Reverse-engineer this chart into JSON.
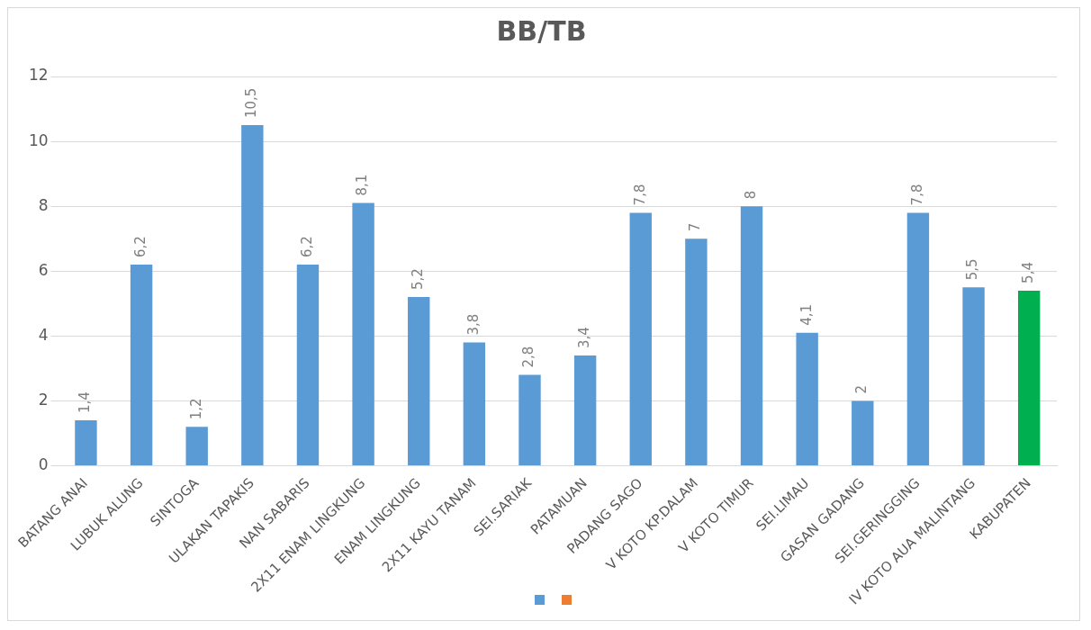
{
  "chart_data": {
    "type": "bar",
    "title": "BB/TB",
    "categories": [
      "BATANG ANAI",
      "LUBUK ALUNG",
      "SINTOGA",
      "ULAKAN TAPAKIS",
      "NAN SABARIS",
      "2X11 ENAM LINGKUNG",
      "ENAM LINGKUNG",
      "2X11 KAYU TANAM",
      "SEI.SARIAK",
      "PATAMUAN",
      "PADANG SAGO",
      "V KOTO KP.DALAM",
      "V KOTO TIMUR",
      "SEI.LIMAU",
      "GASAN GADANG",
      "SEI.GERINGGING",
      "IV KOTO AUA MALINTANG",
      "KABUPATEN"
    ],
    "series": [
      {
        "color": "#5b9bd5",
        "colors": [
          "#5b9bd5",
          "#5b9bd5",
          "#5b9bd5",
          "#5b9bd5",
          "#5b9bd5",
          "#5b9bd5",
          "#5b9bd5",
          "#5b9bd5",
          "#5b9bd5",
          "#5b9bd5",
          "#5b9bd5",
          "#5b9bd5",
          "#5b9bd5",
          "#5b9bd5",
          "#5b9bd5",
          "#5b9bd5",
          "#5b9bd5",
          "#00b050"
        ],
        "values": [
          1.4,
          6.2,
          1.2,
          10.5,
          6.2,
          8.1,
          5.2,
          3.8,
          2.8,
          3.4,
          7.8,
          7,
          8,
          4.1,
          2,
          7.8,
          5.5,
          5.4
        ],
        "value_labels": [
          "1,4",
          "6,2",
          "1,2",
          "10,5",
          "6,2",
          "8,1",
          "5,2",
          "3,8",
          "2,8",
          "3,4",
          "7,8",
          "7",
          "8",
          "4,1",
          "2",
          "7,8",
          "5,5",
          "5,4"
        ]
      }
    ],
    "ylim": [
      0,
      12
    ],
    "yticks": [
      0,
      2,
      4,
      6,
      8,
      10,
      12
    ],
    "grid": "y"
  }
}
